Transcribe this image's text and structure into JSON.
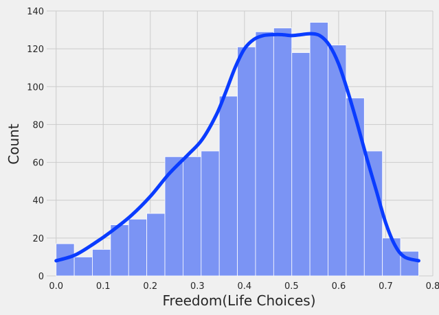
{
  "chart_data": {
    "type": "bar",
    "subtype": "histogram-with-kde",
    "xlabel": "Freedom(Life Choices)",
    "ylabel": "Count",
    "xlim": [
      -0.02,
      0.8
    ],
    "ylim": [
      0,
      140
    ],
    "grid": true,
    "x_ticks": [
      0.0,
      0.1,
      0.2,
      0.3,
      0.4,
      0.5,
      0.6,
      0.7,
      0.8
    ],
    "x_tick_labels": [
      "0.0",
      "0.1",
      "0.2",
      "0.3",
      "0.4",
      "0.5",
      "0.6",
      "0.7",
      "0.8"
    ],
    "y_ticks": [
      0,
      20,
      40,
      60,
      80,
      100,
      120,
      140
    ],
    "y_tick_labels": [
      "0",
      "20",
      "40",
      "60",
      "80",
      "100",
      "120",
      "140"
    ],
    "bins": [
      {
        "x0": 0.0,
        "x1": 0.0385,
        "count": 17
      },
      {
        "x0": 0.0385,
        "x1": 0.077,
        "count": 10
      },
      {
        "x0": 0.077,
        "x1": 0.1155,
        "count": 14
      },
      {
        "x0": 0.1155,
        "x1": 0.154,
        "count": 27
      },
      {
        "x0": 0.154,
        "x1": 0.1925,
        "count": 30
      },
      {
        "x0": 0.1925,
        "x1": 0.231,
        "count": 33
      },
      {
        "x0": 0.231,
        "x1": 0.2695,
        "count": 63
      },
      {
        "x0": 0.2695,
        "x1": 0.308,
        "count": 63
      },
      {
        "x0": 0.308,
        "x1": 0.3465,
        "count": 66
      },
      {
        "x0": 0.3465,
        "x1": 0.385,
        "count": 95
      },
      {
        "x0": 0.385,
        "x1": 0.4235,
        "count": 121
      },
      {
        "x0": 0.4235,
        "x1": 0.462,
        "count": 129
      },
      {
        "x0": 0.462,
        "x1": 0.5005,
        "count": 131
      },
      {
        "x0": 0.5005,
        "x1": 0.539,
        "count": 118
      },
      {
        "x0": 0.539,
        "x1": 0.5775,
        "count": 134
      },
      {
        "x0": 0.5775,
        "x1": 0.616,
        "count": 122
      },
      {
        "x0": 0.616,
        "x1": 0.6545,
        "count": 94
      },
      {
        "x0": 0.6545,
        "x1": 0.693,
        "count": 66
      },
      {
        "x0": 0.693,
        "x1": 0.7315,
        "count": 20
      },
      {
        "x0": 0.7315,
        "x1": 0.77,
        "count": 13
      }
    ],
    "kde": {
      "x": [
        0.0,
        0.04,
        0.08,
        0.12,
        0.16,
        0.2,
        0.24,
        0.28,
        0.31,
        0.34,
        0.36,
        0.38,
        0.4,
        0.42,
        0.44,
        0.46,
        0.48,
        0.5,
        0.52,
        0.54,
        0.56,
        0.58,
        0.6,
        0.62,
        0.64,
        0.66,
        0.68,
        0.7,
        0.72,
        0.74,
        0.77
      ],
      "y": [
        8,
        11,
        17,
        24,
        32,
        42,
        54,
        64,
        72,
        85,
        97,
        110,
        120,
        125,
        127,
        127.5,
        127.5,
        127,
        127.5,
        128,
        127,
        122,
        112,
        97,
        80,
        62,
        45,
        28,
        16,
        10,
        8
      ]
    },
    "colors": {
      "background": "#f0f0f0",
      "grid": "#cbcbcb",
      "bar_fill": "#7b94f4",
      "bar_edge": "#ffffff",
      "kde_line": "#0a3cff"
    }
  }
}
